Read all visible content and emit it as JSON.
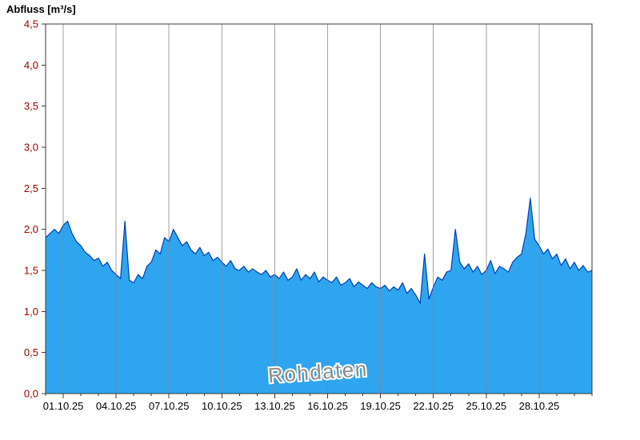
{
  "header": {
    "title": "Abfluss [m³/s]"
  },
  "watermark": {
    "text": "Rohdaten"
  },
  "colors": {
    "area_fill": "#2ea5ee",
    "line": "#0040b4",
    "grid": "#848490",
    "frame": "#3a3a3a",
    "y_tick_label": "#a00000",
    "x_tick_label": "#000000",
    "watermark_fill": "#8c8c8c",
    "watermark_outline": "#ffffff",
    "background": "#ffffff"
  },
  "chart_data": {
    "type": "area",
    "title": "Abfluss [m³/s]",
    "ylabel": "Abfluss [m³/s]",
    "xlabel": "",
    "ylim": [
      0,
      4.5
    ],
    "ytick_step": 0.5,
    "ytick_labels": [
      "0,0",
      "0,5",
      "1,0",
      "1,5",
      "2,0",
      "2,5",
      "3,0",
      "3,5",
      "4,0",
      "4,5"
    ],
    "decimal_separator": ",",
    "x_range_days": [
      0,
      31
    ],
    "x_tick_days": [
      1,
      4,
      7,
      10,
      13,
      16,
      19,
      22,
      25,
      28
    ],
    "x_tick_labels": [
      "01.10.25",
      "04.10.25",
      "07.10.25",
      "10.10.25",
      "13.10.25",
      "16.10.25",
      "19.10.25",
      "22.10.25",
      "25.10.25",
      "28.10.25"
    ],
    "grid": "vertical-only",
    "legend": "none",
    "annotations": [
      "Rohdaten"
    ],
    "sample_interval_hours": 6,
    "values": [
      1.9,
      1.95,
      2.0,
      1.95,
      2.05,
      2.1,
      1.95,
      1.85,
      1.8,
      1.72,
      1.68,
      1.62,
      1.65,
      1.55,
      1.6,
      1.5,
      1.45,
      1.4,
      2.1,
      1.38,
      1.35,
      1.45,
      1.4,
      1.55,
      1.6,
      1.75,
      1.7,
      1.9,
      1.85,
      2.0,
      1.9,
      1.8,
      1.85,
      1.75,
      1.7,
      1.78,
      1.68,
      1.72,
      1.62,
      1.66,
      1.6,
      1.55,
      1.62,
      1.52,
      1.5,
      1.55,
      1.48,
      1.52,
      1.48,
      1.45,
      1.5,
      1.42,
      1.45,
      1.4,
      1.48,
      1.38,
      1.42,
      1.52,
      1.38,
      1.45,
      1.4,
      1.48,
      1.36,
      1.42,
      1.38,
      1.35,
      1.42,
      1.32,
      1.35,
      1.4,
      1.3,
      1.36,
      1.32,
      1.28,
      1.35,
      1.3,
      1.28,
      1.32,
      1.25,
      1.3,
      1.26,
      1.35,
      1.22,
      1.28,
      1.2,
      1.1,
      1.7,
      1.15,
      1.3,
      1.42,
      1.38,
      1.48,
      1.5,
      2.0,
      1.6,
      1.52,
      1.58,
      1.48,
      1.55,
      1.45,
      1.5,
      1.62,
      1.46,
      1.55,
      1.52,
      1.48,
      1.6,
      1.66,
      1.7,
      1.95,
      2.38,
      1.88,
      1.8,
      1.7,
      1.76,
      1.64,
      1.7,
      1.56,
      1.64,
      1.52,
      1.6,
      1.5,
      1.56,
      1.48,
      1.5
    ]
  }
}
